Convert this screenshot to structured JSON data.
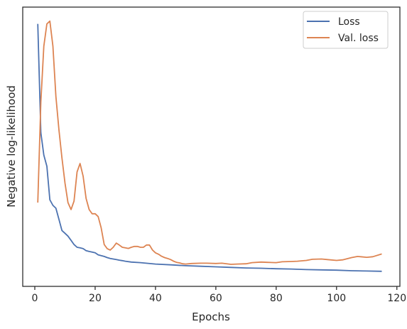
{
  "chart_data": {
    "type": "line",
    "title": "",
    "xlabel": "Epochs",
    "ylabel": "Negative log-likelihood",
    "xlim": [
      -4,
      121
    ],
    "ylim": [
      0,
      100
    ],
    "xticks": [
      0,
      20,
      40,
      60,
      80,
      100,
      120
    ],
    "yticks": [],
    "grid": false,
    "legend_position": "top-right",
    "series": [
      {
        "name": "Loss",
        "color": "#4c72b0",
        "x": [
          1,
          2,
          3,
          4,
          5,
          6,
          7,
          8,
          9,
          10,
          11,
          12,
          13,
          14,
          15,
          16,
          17,
          18,
          19,
          20,
          21,
          22,
          23,
          24,
          25,
          26,
          27,
          28,
          29,
          30,
          32,
          35,
          40,
          45,
          50,
          55,
          60,
          65,
          70,
          75,
          80,
          85,
          90,
          95,
          100,
          105,
          110,
          115
        ],
        "y": [
          94.0,
          55.0,
          47.0,
          43.0,
          31.0,
          29.0,
          28.0,
          24.0,
          20.0,
          19.0,
          18.0,
          16.5,
          15.0,
          14.0,
          13.8,
          13.5,
          12.8,
          12.5,
          12.3,
          12.0,
          11.3,
          11.0,
          10.7,
          10.3,
          10.0,
          9.8,
          9.6,
          9.4,
          9.2,
          9.0,
          8.7,
          8.5,
          8.0,
          7.7,
          7.4,
          7.2,
          7.0,
          6.8,
          6.6,
          6.5,
          6.3,
          6.2,
          6.0,
          5.9,
          5.8,
          5.6,
          5.5,
          5.4
        ]
      },
      {
        "name": "Val. loss",
        "color": "#dd8452",
        "x": [
          1,
          2,
          3,
          4,
          5,
          6,
          7,
          8,
          9,
          10,
          11,
          12,
          13,
          14,
          15,
          16,
          17,
          18,
          19,
          20,
          21,
          22,
          23,
          24,
          25,
          26,
          27,
          28,
          29,
          30,
          31,
          32,
          33,
          34,
          35,
          36,
          37,
          38,
          39,
          40,
          41,
          42,
          43,
          44,
          45,
          46,
          47,
          48,
          49,
          50,
          52,
          55,
          57,
          60,
          62,
          65,
          67,
          70,
          72,
          75,
          77,
          80,
          82,
          85,
          87,
          90,
          92,
          95,
          97,
          100,
          102,
          105,
          107,
          110,
          112,
          115
        ],
        "y": [
          30.0,
          66.0,
          86.0,
          94.0,
          95.0,
          86.0,
          68.0,
          56.0,
          46.0,
          37.0,
          30.0,
          27.5,
          30.5,
          41.0,
          44.0,
          39.5,
          31.5,
          27.5,
          26.0,
          26.0,
          25.0,
          21.0,
          15.0,
          13.5,
          13.0,
          14.0,
          15.5,
          14.8,
          14.0,
          13.8,
          13.6,
          14.0,
          14.3,
          14.3,
          14.0,
          14.0,
          14.8,
          14.8,
          13.0,
          12.0,
          11.5,
          10.8,
          10.3,
          10.0,
          9.6,
          9.0,
          8.6,
          8.4,
          8.1,
          8.0,
          8.2,
          8.3,
          8.3,
          8.2,
          8.3,
          7.9,
          8.0,
          8.1,
          8.5,
          8.7,
          8.6,
          8.5,
          8.8,
          8.9,
          9.0,
          9.3,
          9.7,
          9.8,
          9.6,
          9.3,
          9.5,
          10.3,
          10.7,
          10.4,
          10.6,
          11.6
        ]
      }
    ]
  }
}
